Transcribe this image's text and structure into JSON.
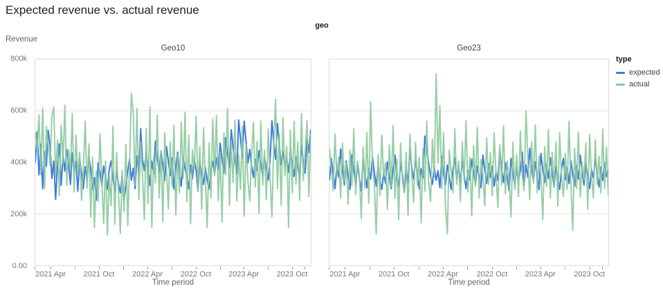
{
  "page": {
    "title": "Expected revenue vs. actual revenue"
  },
  "facet": {
    "label": "geo"
  },
  "colors": {
    "expected": "#3b78e7",
    "actual": "#8cc99c",
    "grid": "#e4e4e4",
    "border": "#dcdcdc",
    "tick_text": "#757575",
    "title_text": "#202124"
  },
  "axes": {
    "y_title": "Revenue",
    "x_title": "Time period",
    "y_max": 800,
    "y_ticks": [
      {
        "label": "0.00",
        "value": 0
      },
      {
        "label": "200k",
        "value": 200
      },
      {
        "label": "400k",
        "value": 400
      },
      {
        "label": "600k",
        "value": 600
      },
      {
        "label": "800k",
        "value": 800
      }
    ],
    "y_gridlines": [
      200,
      400,
      600
    ],
    "x_major_ticks": [
      {
        "label": "2021 Apr",
        "f": 0.0575
      },
      {
        "label": "2021 Oct",
        "f": 0.2325
      },
      {
        "label": "2022 Apr",
        "f": 0.4075
      },
      {
        "label": "2022 Oct",
        "f": 0.5825
      },
      {
        "label": "2023 Apr",
        "f": 0.755
      },
      {
        "label": "2023 Oct",
        "f": 0.93
      }
    ],
    "x_minor_ticks": [
      0.0,
      0.145,
      0.32,
      0.495,
      0.67,
      0.8425,
      0.975
    ]
  },
  "legend": {
    "title": "type",
    "items": [
      {
        "label": "expected",
        "color": "#3b78e7"
      },
      {
        "label": "actual",
        "color": "#8cc99c"
      }
    ]
  },
  "chart_data": [
    {
      "type": "line",
      "facet": "Geo10",
      "x_unit": "weekly samples, Jan 2021 - Dec 2023",
      "y_unit": "revenue in thousands (k)",
      "ylim": [
        0,
        800
      ],
      "grid": true,
      "legend_position": "right",
      "series": [
        {
          "name": "expected",
          "color": "#3b78e7",
          "values": [
            400,
            518,
            352,
            471,
            298,
            441,
            385,
            524,
            462,
            338,
            405,
            256,
            389,
            472,
            310,
            428,
            366,
            450,
            392,
            315,
            437,
            371,
            404,
            288,
            412,
            356,
            298,
            383,
            331,
            420,
            376,
            295,
            341,
            253,
            398,
            360,
            310,
            386,
            342,
            296,
            372,
            405,
            338,
            290,
            361,
            318,
            282,
            346,
            256,
            304,
            368,
            412,
            331,
            378,
            298,
            425,
            359,
            531,
            412,
            368,
            440,
            379,
            310,
            405,
            356,
            483,
            418,
            362,
            445,
            388,
            329,
            461,
            402,
            349,
            418,
            296,
            381,
            440,
            362,
            308,
            422,
            375,
            346,
            298,
            390,
            336,
            412,
            370,
            288,
            402,
            359,
            315,
            381,
            330,
            297,
            368,
            404,
            356,
            418,
            372,
            475,
            412,
            358,
            496,
            433,
            380,
            527,
            461,
            409,
            356,
            565,
            492,
            417,
            560,
            481,
            398,
            451,
            386,
            342,
            412,
            368,
            445,
            391,
            348,
            420,
            376,
            331,
            405,
            562,
            475,
            412,
            551,
            468,
            390,
            442,
            385,
            416,
            361,
            440,
            392,
            346,
            421,
            383,
            342,
            465,
            402,
            358,
            490,
            438,
            528
          ]
        },
        {
          "name": "actual",
          "color": "#8cc99c",
          "values": [
            520,
            448,
            585,
            352,
            610,
            298,
            540,
            465,
            388,
            580,
            615,
            342,
            488,
            270,
            545,
            395,
            622,
            310,
            450,
            368,
            590,
            285,
            505,
            348,
            440,
            252,
            378,
            560,
            300,
            472,
            188,
            420,
            145,
            365,
            248,
            510,
            330,
            162,
            405,
            118,
            350,
            232,
            540,
            160,
            438,
            285,
            125,
            368,
            210,
            470,
            155,
            392,
            668,
            590,
            312,
            610,
            255,
            480,
            350,
            178,
            530,
            240,
            615,
            148,
            420,
            320,
            582,
            262,
            445,
            170,
            515,
            368,
            220,
            480,
            305,
            545,
            195,
            430,
            282,
            555,
            338,
            595,
            248,
            505,
            162,
            448,
            372,
            580,
            290,
            462,
            218,
            535,
            330,
            148,
            475,
            262,
            568,
            348,
            582,
            252,
            440,
            168,
            515,
            352,
            610,
            232,
            480,
            322,
            565,
            250,
            430,
            295,
            540,
            190,
            468,
            330,
            250,
            425,
            555,
            305,
            482,
            202,
            560,
            312,
            448,
            255,
            530,
            345,
            188,
            470,
            645,
            298,
            510,
            232,
            575,
            348,
            462,
            148,
            525,
            282,
            560,
            315,
            480,
            252,
            590,
            330,
            445,
            562,
            268,
            510
          ]
        }
      ]
    },
    {
      "type": "line",
      "facet": "Geo23",
      "x_unit": "weekly samples, Jan 2021 - Dec 2023",
      "y_unit": "revenue in thousands (k)",
      "ylim": [
        0,
        800
      ],
      "grid": true,
      "legend_position": "right",
      "series": [
        {
          "name": "expected",
          "color": "#3b78e7",
          "values": [
            330,
            415,
            358,
            298,
            388,
            342,
            452,
            375,
            312,
            405,
            348,
            295,
            430,
            368,
            315,
            392,
            340,
            288,
            412,
            356,
            302,
            378,
            335,
            420,
            362,
            308,
            385,
            330,
            295,
            360,
            318,
            402,
            345,
            298,
            372,
            428,
            338,
            305,
            395,
            352,
            285,
            368,
            322,
            448,
            380,
            335,
            408,
            355,
            298,
            375,
            340,
            502,
            452,
            398,
            348,
            315,
            382,
            330,
            368,
            302,
            425,
            358,
            312,
            390,
            345,
            295,
            372,
            418,
            336,
            388,
            322,
            405,
            350,
            298,
            368,
            332,
            412,
            362,
            315,
            386,
            345,
            302,
            428,
            370,
            318,
            395,
            342,
            385,
            308,
            362,
            330,
            448,
            375,
            322,
            398,
            345,
            290,
            415,
            358,
            312,
            382,
            335,
            368,
            440,
            312,
            390,
            342,
            455,
            375,
            328,
            402,
            348,
            295,
            435,
            370,
            322,
            392,
            338,
            418,
            360,
            305,
            385,
            340,
            295,
            375,
            415,
            332,
            380,
            318,
            405,
            352,
            308,
            388,
            335,
            428,
            365,
            312,
            395,
            348,
            298,
            372,
            340,
            412,
            358,
            305,
            382,
            330,
            398,
            345,
            368
          ]
        },
        {
          "name": "actual",
          "color": "#8cc99c",
          "values": [
            455,
            380,
            290,
            510,
            348,
            420,
            262,
            475,
            325,
            398,
            238,
            448,
            310,
            530,
            275,
            405,
            350,
            182,
            460,
            298,
            515,
            242,
            635,
            388,
            320,
            122,
            430,
            272,
            505,
            345,
            398,
            218,
            468,
            305,
            542,
            260,
            415,
            178,
            475,
            332,
            282,
            440,
            195,
            510,
            355,
            245,
            478,
            310,
            420,
            165,
            452,
            288,
            560,
            325,
            248,
            490,
            342,
            745,
            398,
            620,
            298,
            515,
            225,
            122,
            448,
            368,
            282,
            530,
            315,
            405,
            248,
            478,
            330,
            562,
            285,
            420,
            192,
            465,
            308,
            535,
            262,
            410,
            348,
            232,
            495,
            315,
            438,
            270,
            515,
            358,
            225,
            468,
            312,
            542,
            278,
            405,
            332,
            188,
            478,
            295,
            430,
            268,
            522,
            345,
            290,
            600,
            415,
            255,
            480,
            318,
            545,
            282,
            425,
            350,
            178,
            462,
            305,
            528,
            262,
            440,
            308,
            480,
            232,
            515,
            348,
            268,
            435,
            295,
            560,
            322,
            135,
            455,
            298,
            518,
            265,
            398,
            332,
            475,
            218,
            508,
            345,
            262,
            488,
            315,
            425,
            282,
            530,
            298,
            460,
            272
          ]
        }
      ]
    }
  ]
}
